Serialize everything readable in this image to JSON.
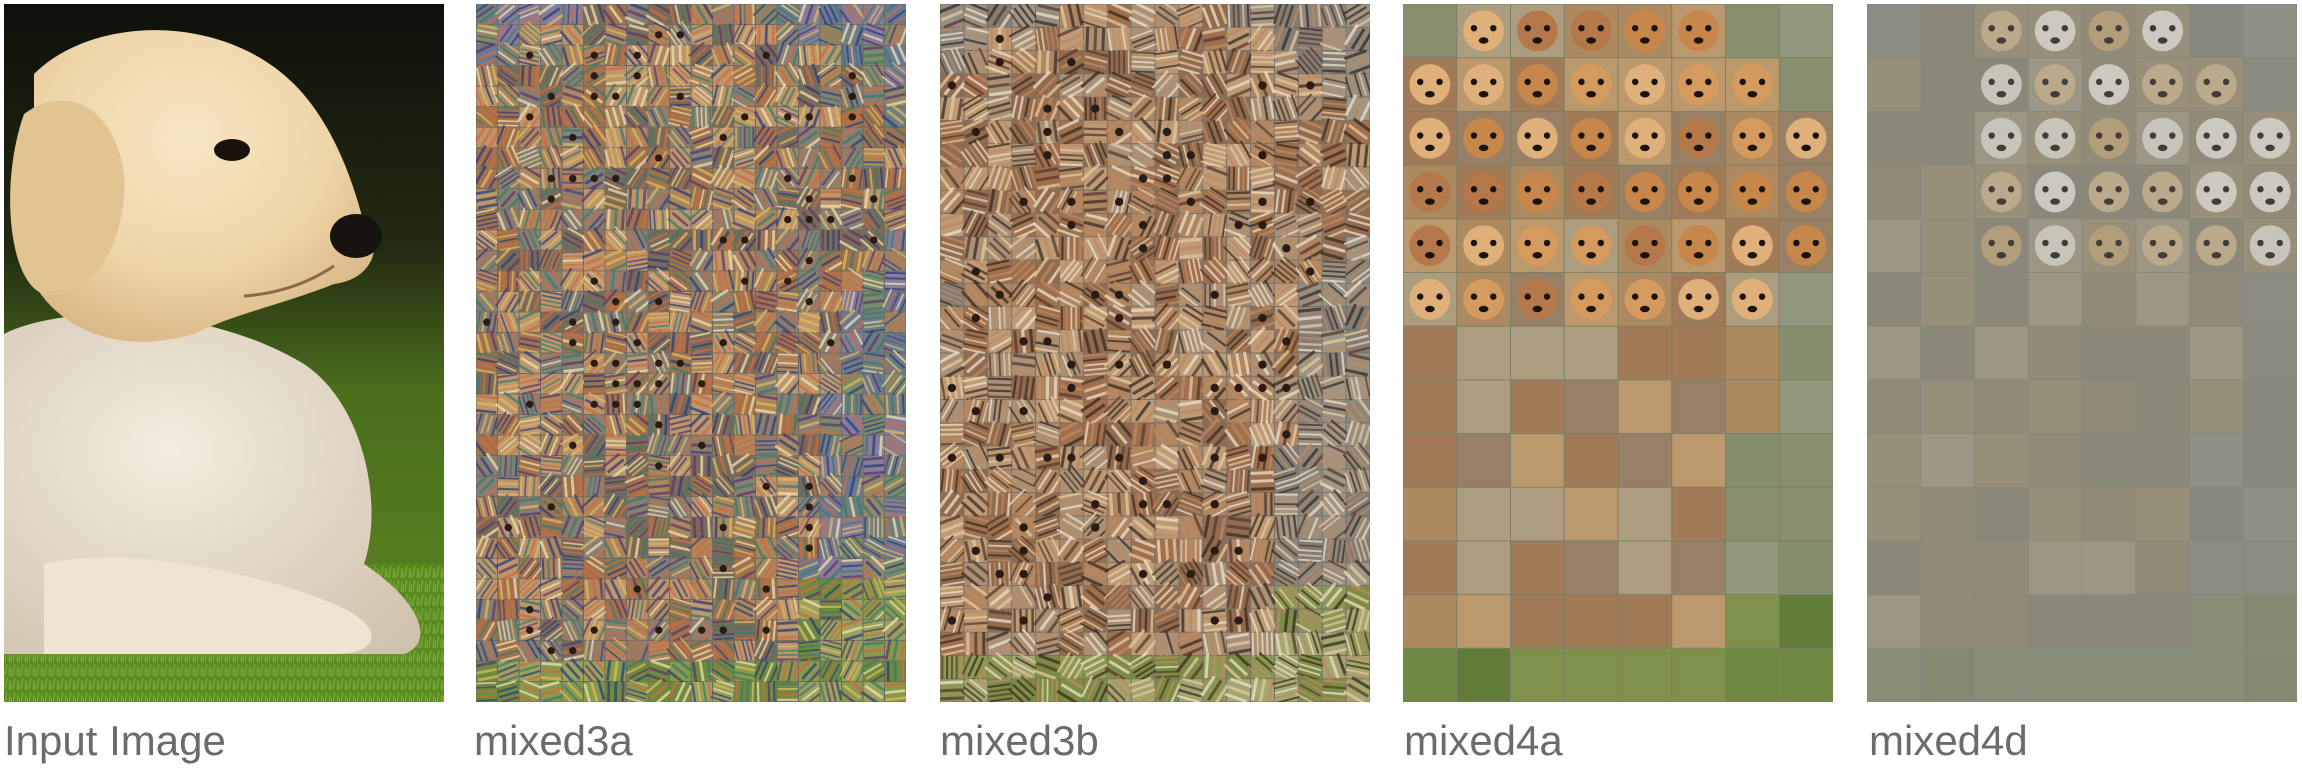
{
  "figure": {
    "panels": [
      {
        "label": "Input Image",
        "kind": "photo",
        "subject": "puppy"
      },
      {
        "label": "mixed3a",
        "kind": "activation-grid",
        "texture": "fine-patterns"
      },
      {
        "label": "mixed3b",
        "kind": "activation-grid",
        "texture": "fur-patterns"
      },
      {
        "label": "mixed4a",
        "kind": "activation-grid",
        "texture": "dog-faces"
      },
      {
        "label": "mixed4d",
        "kind": "activation-grid",
        "texture": "dog-heads-faded"
      }
    ],
    "colors": {
      "label_text": "#6b6b6b",
      "grass": "#4f7a1f",
      "fur": "#f0d6ac",
      "background_dark": "#1b1d12"
    }
  }
}
